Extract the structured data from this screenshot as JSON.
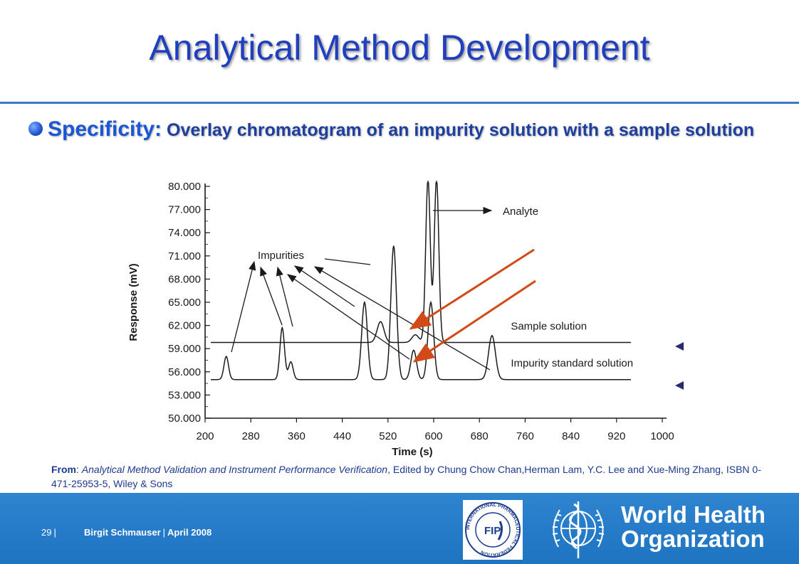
{
  "slide": {
    "title": "Analytical Method Development",
    "bullet_keyword": "Specificity:",
    "bullet_text": " Overlay chromatogram of an impurity solution with a sample solution"
  },
  "chart_data": {
    "type": "line",
    "xlabel": "Time (s)",
    "ylabel": "Response (mV)",
    "xlim": [
      200,
      1000
    ],
    "ylim": [
      50,
      80
    ],
    "x_ticks": [
      "200",
      "280",
      "360",
      "440",
      "520",
      "600",
      "680",
      "760",
      "840",
      "920",
      "1000"
    ],
    "y_ticks": [
      "80.000",
      "77.000",
      "74.000",
      "71.000",
      "68.000",
      "65.000",
      "62.000",
      "59.000",
      "56.000",
      "53.000",
      "50.000"
    ],
    "series": [
      {
        "name": "Sample solution",
        "baseline": 59.8,
        "peaks": [
          [
            507,
            62.5,
            6
          ],
          [
            568,
            60.8,
            6
          ],
          [
            590,
            81,
            4
          ],
          [
            605,
            81,
            4
          ]
        ]
      },
      {
        "name": "Impurity standard solution",
        "baseline": 55.0,
        "peaks": [
          [
            237,
            58.0,
            4
          ],
          [
            335,
            61.7,
            4
          ],
          [
            350,
            57.3,
            4
          ],
          [
            479,
            65.0,
            5
          ],
          [
            530,
            72.3,
            5
          ],
          [
            565,
            58.8,
            5
          ],
          [
            595,
            65.0,
            5
          ],
          [
            702,
            60.7,
            6
          ]
        ]
      }
    ],
    "annotations": {
      "impurities": "Impurities",
      "analyte": "Analyte"
    }
  },
  "citation": {
    "from_label": "From",
    "colon": ": ",
    "book_title": "Analytical Method Validation and Instrument Performance Verification",
    "rest": ", Edited by Chung Chow Chan,Herman Lam, Y.C. Lee and Xue-Ming Zhang, ISBN 0-471-25953-5, Wiley & Sons"
  },
  "footer": {
    "page_number": "29",
    "divider": "|",
    "author": "Birgit Schmauser",
    "date": "April 2008",
    "fip_text": "FIP",
    "fip_ring_text": "INTERNATIONAL PHARMACEUTICAL FEDERATION",
    "who_line1": "World Health",
    "who_line2": "Organization"
  },
  "colors": {
    "title": "#1f3fbf",
    "accent_arrow": "#d24a17",
    "side_arrow": "#2a2a6e",
    "footer_bg": "#2a7fcc",
    "ink": "#1a1a1a"
  }
}
